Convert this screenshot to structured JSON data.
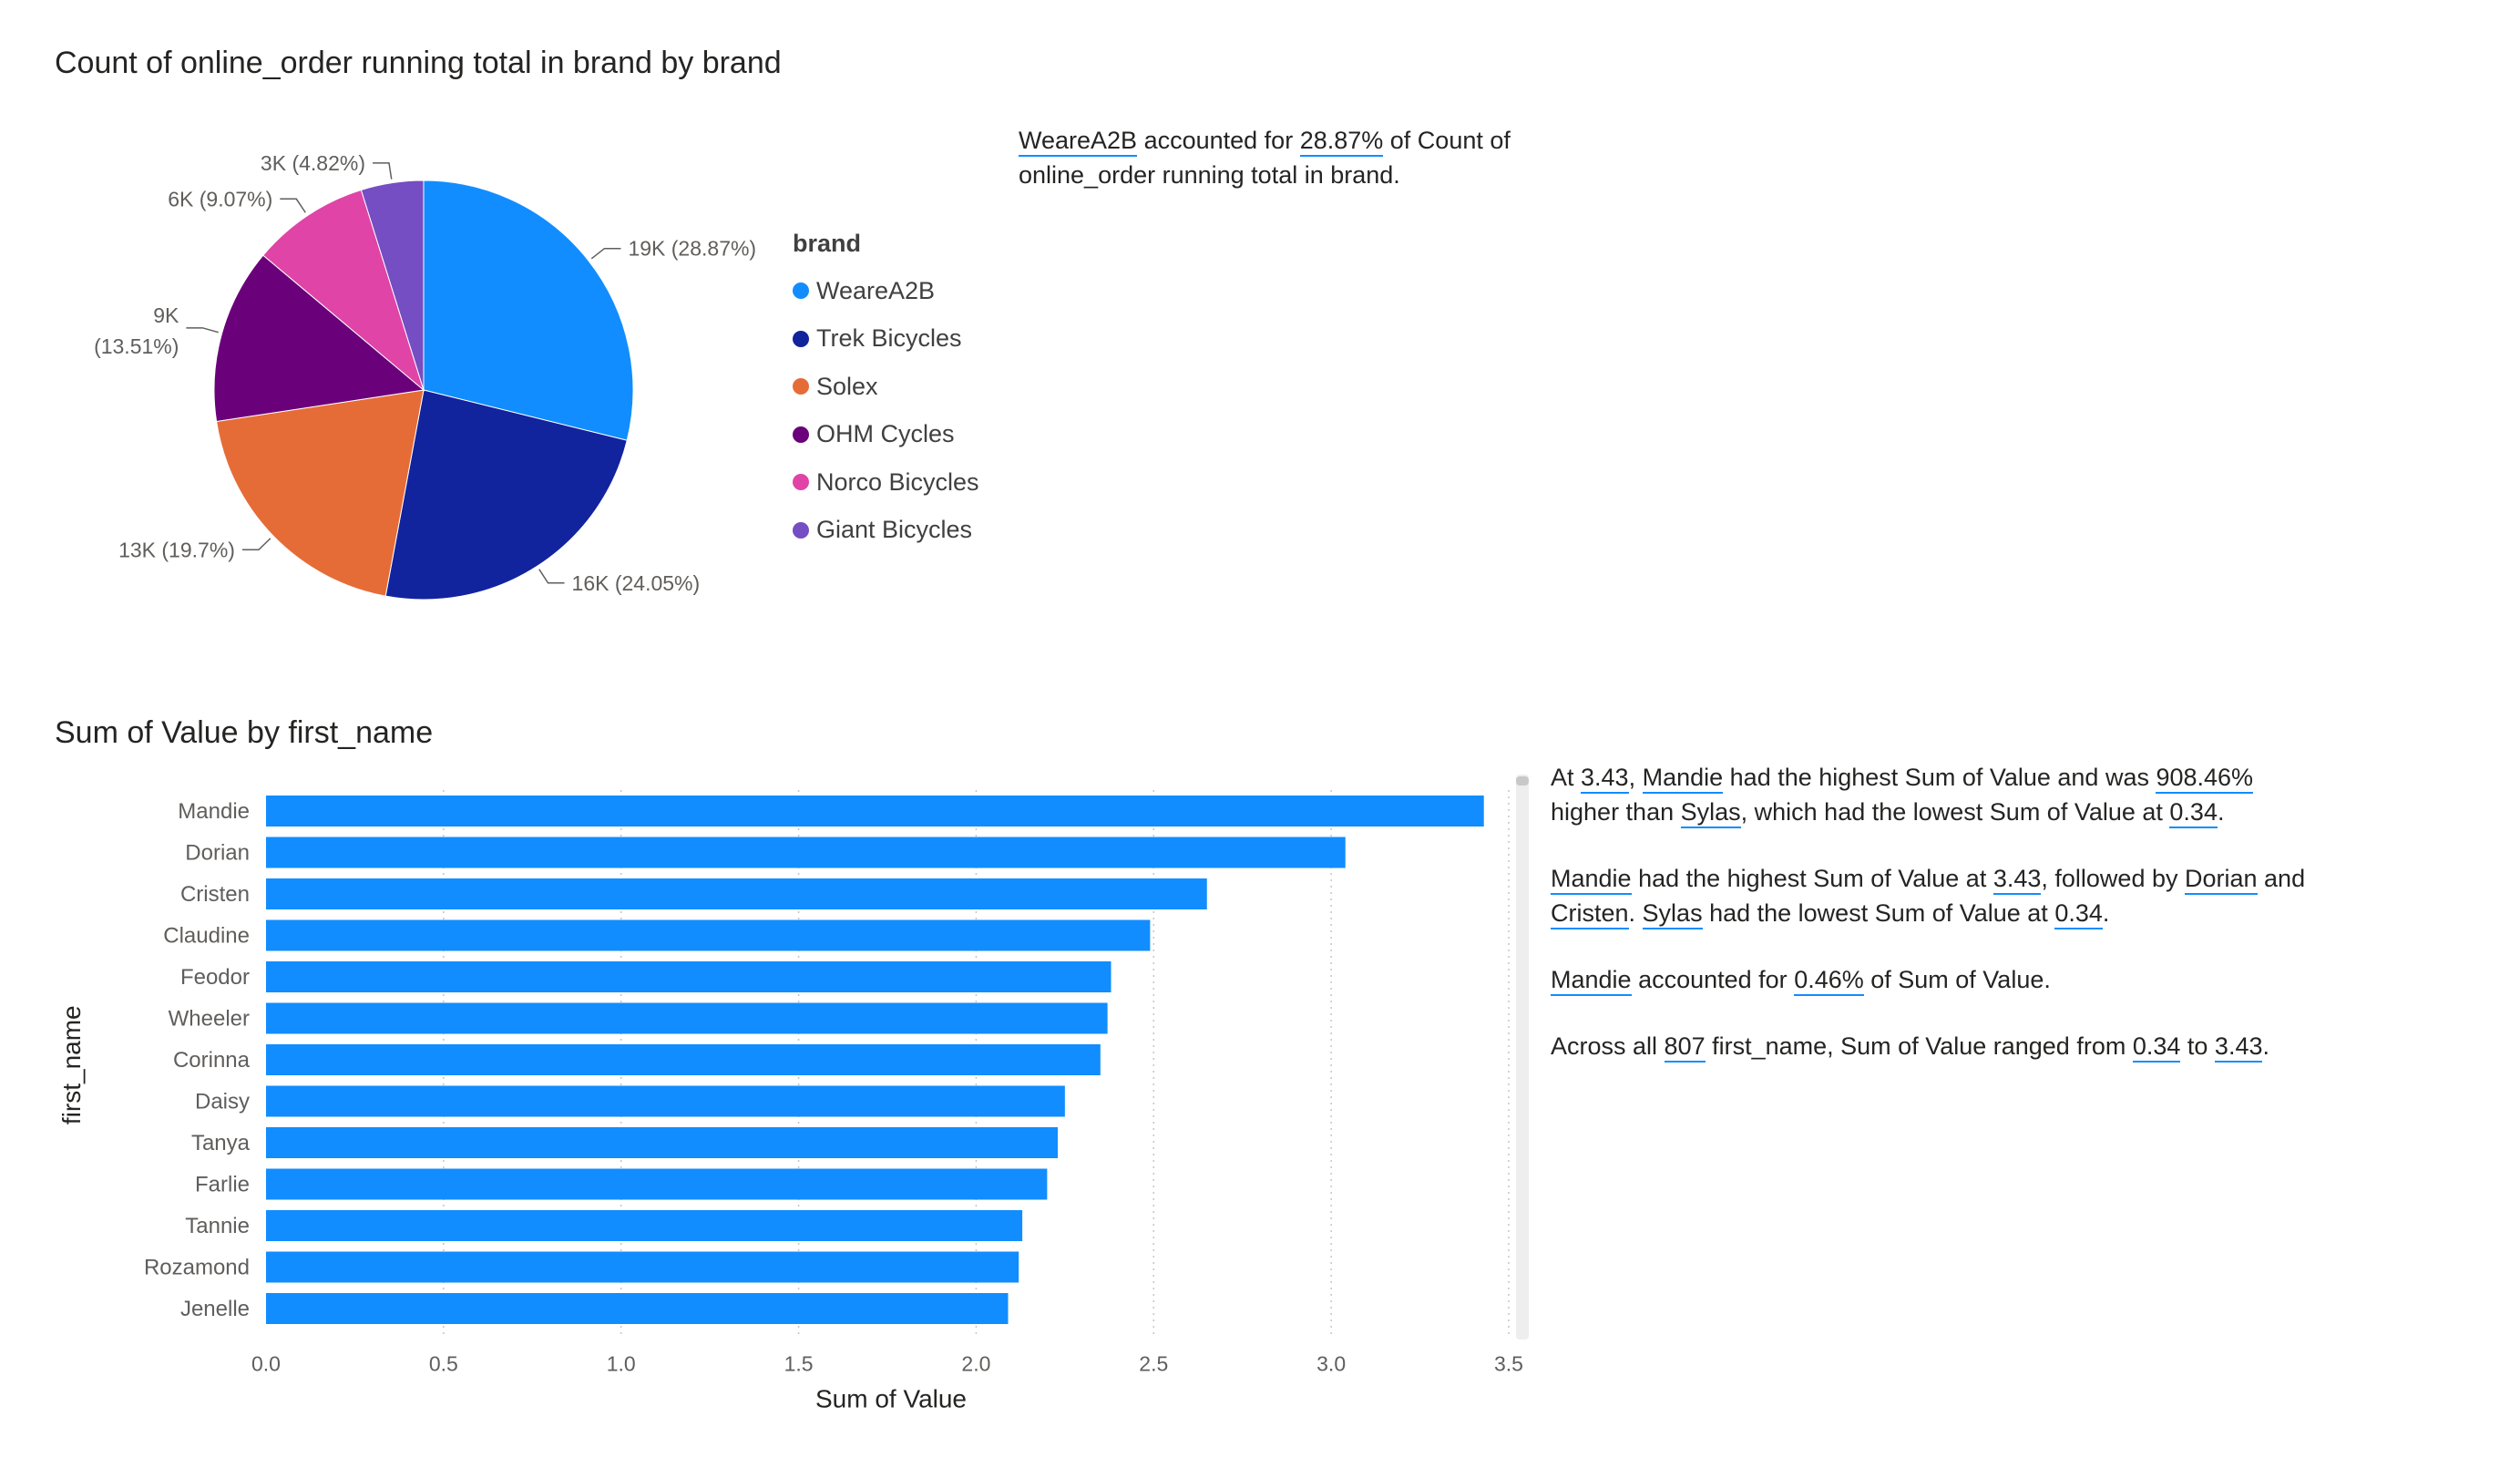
{
  "pie_visual": {
    "title": "Count of online_order running total in brand by brand",
    "legend_title": "brand",
    "narrative": [
      {
        "text": "WeareA2B",
        "hl": true
      },
      {
        "text": " accounted for ",
        "hl": false
      },
      {
        "text": "28.87%",
        "hl": true
      },
      {
        "text": " of Count of online_order running total in brand.",
        "hl": false
      }
    ]
  },
  "bar_visual": {
    "title": "Sum of Value by first_name",
    "narrative": [
      [
        {
          "text": "At ",
          "hl": false
        },
        {
          "text": "3.43",
          "hl": true
        },
        {
          "text": ", ",
          "hl": false
        },
        {
          "text": "Mandie",
          "hl": true
        },
        {
          "text": " had the highest Sum of Value and was ",
          "hl": false
        },
        {
          "text": "908.46%",
          "hl": true
        },
        {
          "text": " higher than ",
          "hl": false
        },
        {
          "text": "Sylas",
          "hl": true
        },
        {
          "text": ", which had the lowest Sum of Value at ",
          "hl": false
        },
        {
          "text": "0.34",
          "hl": true
        },
        {
          "text": ".",
          "hl": false
        }
      ],
      [
        {
          "text": "Mandie",
          "hl": true
        },
        {
          "text": " had the highest Sum of Value at ",
          "hl": false
        },
        {
          "text": "3.43",
          "hl": true
        },
        {
          "text": ", followed by ",
          "hl": false
        },
        {
          "text": "Dorian",
          "hl": true
        },
        {
          "text": " and ",
          "hl": false
        },
        {
          "text": "Cristen",
          "hl": true
        },
        {
          "text": ". ",
          "hl": false
        },
        {
          "text": "Sylas",
          "hl": true
        },
        {
          "text": " had the lowest Sum of Value at ",
          "hl": false
        },
        {
          "text": "0.34",
          "hl": true
        },
        {
          "text": ".",
          "hl": false
        }
      ],
      [
        {
          "text": "Mandie",
          "hl": true
        },
        {
          "text": " accounted for ",
          "hl": false
        },
        {
          "text": "0.46%",
          "hl": true
        },
        {
          "text": " of Sum of Value.",
          "hl": false
        }
      ],
      [
        {
          "text": "Across all ",
          "hl": false
        },
        {
          "text": "807",
          "hl": true
        },
        {
          "text": " first_name, Sum of Value ranged from ",
          "hl": false
        },
        {
          "text": "0.34",
          "hl": true
        },
        {
          "text": " to ",
          "hl": false
        },
        {
          "text": "3.43",
          "hl": true
        },
        {
          "text": ".",
          "hl": false
        }
      ]
    ]
  },
  "chart_data": [
    {
      "type": "pie",
      "title": "Count of online_order running total in brand by brand",
      "legend_title": "brand",
      "legend_position": "right",
      "slices": [
        {
          "name": "WeareA2B",
          "value": 19,
          "label": "19K (28.87%)",
          "color": "#118dff"
        },
        {
          "name": "Trek Bicycles",
          "value": 16,
          "label": "16K (24.05%)",
          "color": "#12239e"
        },
        {
          "name": "Solex",
          "value": 13,
          "label": "13K (19.7%)",
          "color": "#e66c37"
        },
        {
          "name": "OHM Cycles",
          "value": 9,
          "label": "9K (13.51%)",
          "color": "#6b007b"
        },
        {
          "name": "Norco Bicycles",
          "value": 6,
          "label": "6K (9.07%)",
          "color": "#e044a7"
        },
        {
          "name": "Giant Bicycles",
          "value": 3,
          "label": "3K (4.82%)",
          "color": "#744ec2"
        }
      ],
      "percentages": [
        28.87,
        24.05,
        19.7,
        13.51,
        9.07,
        4.82
      ]
    },
    {
      "type": "bar",
      "orientation": "horizontal",
      "title": "Sum of Value by first_name",
      "xlabel": "Sum of Value",
      "ylabel": "first_name",
      "xlim": [
        0,
        3.5
      ],
      "xticks": [
        "0.0",
        "0.5",
        "1.0",
        "1.5",
        "2.0",
        "2.5",
        "3.0",
        "3.5"
      ],
      "grid": "vertical dotted",
      "color": "#118dff",
      "categories": [
        "Mandie",
        "Dorian",
        "Cristen",
        "Claudine",
        "Feodor",
        "Wheeler",
        "Corinna",
        "Daisy",
        "Tanya",
        "Farlie",
        "Tannie",
        "Rozamond",
        "Jenelle"
      ],
      "values": [
        3.43,
        3.04,
        2.65,
        2.49,
        2.38,
        2.37,
        2.35,
        2.25,
        2.23,
        2.2,
        2.13,
        2.12,
        2.09
      ]
    }
  ]
}
